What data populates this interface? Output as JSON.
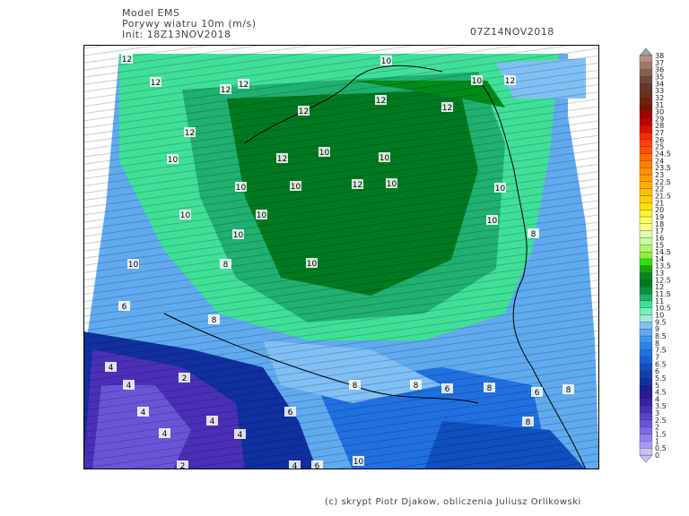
{
  "header": {
    "model": "Model EMS",
    "field": "Porywy wiatru 10m (m/s)",
    "init": "Init: 18Z13NOV2018",
    "valid": "07Z14NOV2018"
  },
  "footer": "(c) skrypt Piotr Djakow, obliczenia Juliusz Orlikowski",
  "colorbar": {
    "levels": [
      "0",
      "0.5",
      "1",
      "1.5",
      "2",
      "2.5",
      "3",
      "3.5",
      "4",
      "4.5",
      "5",
      "5.5",
      "6",
      "6.5",
      "7",
      "7.5",
      "8",
      "8.5",
      "9",
      "9.5",
      "10",
      "10.5",
      "11",
      "11.5",
      "12",
      "12.5",
      "13",
      "13.5",
      "14",
      "14.5",
      "15",
      "16",
      "17",
      "18",
      "19",
      "20",
      "21",
      "21.5",
      "22",
      "22.5",
      "23",
      "23.5",
      "24",
      "24.5",
      "25",
      "26",
      "27",
      "28",
      "29",
      "30",
      "31",
      "32",
      "33",
      "34",
      "35",
      "36",
      "37",
      "38"
    ],
    "colors": [
      "#c9c1f5",
      "#a999f5",
      "#9480f0",
      "#7e6ae6",
      "#6a55d8",
      "#5a44c8",
      "#4a30b8",
      "#3a20a8",
      "#2a1898",
      "#1a2090",
      "#1030a0",
      "#1040b0",
      "#1050c0",
      "#1a60d0",
      "#2070e0",
      "#2a85e8",
      "#4095ec",
      "#60aaf0",
      "#80c0f5",
      "#a0ecd8",
      "#70f5b8",
      "#40e098",
      "#20b070",
      "#109040",
      "#007a20",
      "#008a1a",
      "#20a010",
      "#30e010",
      "#90f040",
      "#b0f870",
      "#c8fca0",
      "#e0ffb0",
      "#ffff90",
      "#ffff60",
      "#fff030",
      "#ffe000",
      "#ffd000",
      "#ffc000",
      "#ffb000",
      "#ffa000",
      "#ff9000",
      "#ff8000",
      "#ff6a00",
      "#ff5000",
      "#ff4010",
      "#ff2a00",
      "#e01000",
      "#c00000",
      "#a00000",
      "#801000",
      "#702010",
      "#6a3020",
      "#603830",
      "#704840",
      "#886050",
      "#a07868",
      "#b89080"
    ],
    "top_arrow": "#a0a0a0",
    "bottom_arrow": "#c9c1f5"
  },
  "contour_labels": [
    "12",
    "12",
    "12",
    "12",
    "12",
    "10",
    "12",
    "12",
    "10",
    "12",
    "12",
    "10",
    "12",
    "10",
    "10",
    "12",
    "10",
    "10",
    "10",
    "10",
    "10",
    "10",
    "10",
    "10",
    "8",
    "10",
    "8",
    "10",
    "8",
    "6",
    "4",
    "4",
    "2",
    "4",
    "4",
    "4",
    "2",
    "4",
    "6",
    "8",
    "8",
    "6",
    "8",
    "6",
    "8",
    "8",
    "4",
    "6",
    "10",
    "6"
  ]
}
